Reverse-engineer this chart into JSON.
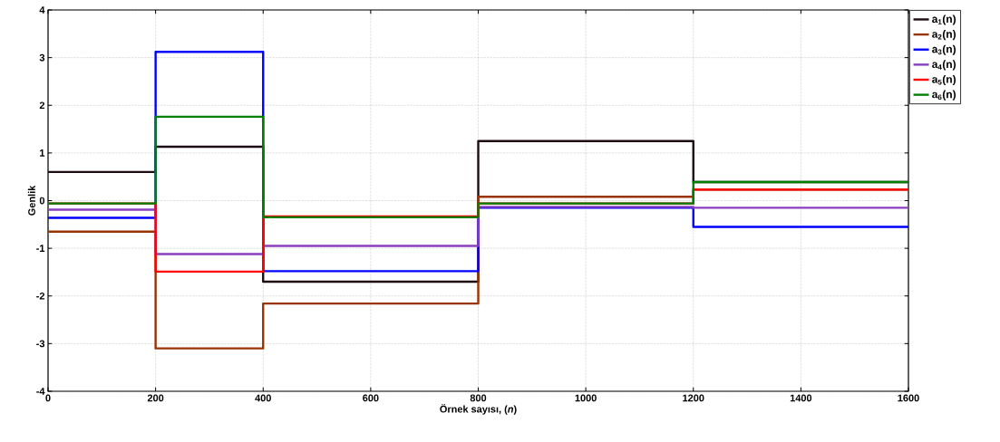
{
  "chart_data": {
    "type": "step",
    "xlabel": "Örnek sayısı, (*n*)",
    "ylabel": "Genlik",
    "x": [
      0,
      200,
      400,
      800,
      1200,
      1600
    ],
    "series": [
      {
        "name": "a$_{1}$(n)",
        "color": "#1f0a14",
        "values": [
          0.6,
          1.13,
          -1.7,
          1.25,
          0.39,
          0.39
        ]
      },
      {
        "name": "a$_{2}$(n)",
        "color": "#993300",
        "values": [
          -0.65,
          -3.1,
          -2.16,
          0.08,
          0.23,
          0.23
        ]
      },
      {
        "name": "a$_{3}$(n)",
        "color": "#0000ff",
        "values": [
          -0.36,
          3.12,
          -1.48,
          -0.15,
          -0.55,
          -0.55
        ]
      },
      {
        "name": "a$_{4}$(n)",
        "color": "#8b3fbf",
        "values": [
          -0.19,
          -1.12,
          -0.95,
          -0.13,
          -0.15,
          -0.15
        ]
      },
      {
        "name": "a$_{5}$(n)",
        "color": "#ff0000",
        "values": [
          -0.06,
          -1.49,
          -0.33,
          -0.06,
          0.23,
          0.23
        ]
      },
      {
        "name": "a$_{6}$(n)",
        "color": "#008000",
        "values": [
          -0.06,
          1.76,
          -0.35,
          -0.06,
          0.39,
          0.39
        ]
      }
    ],
    "xlim": [
      0,
      1600
    ],
    "ylim": [
      -4,
      4
    ],
    "xticks": [
      0,
      200,
      400,
      600,
      800,
      1000,
      1200,
      1400,
      1600
    ],
    "yticks": [
      -4,
      -3,
      -2,
      -1,
      0,
      1,
      2,
      3,
      4
    ],
    "grid": true,
    "legend": "right"
  }
}
